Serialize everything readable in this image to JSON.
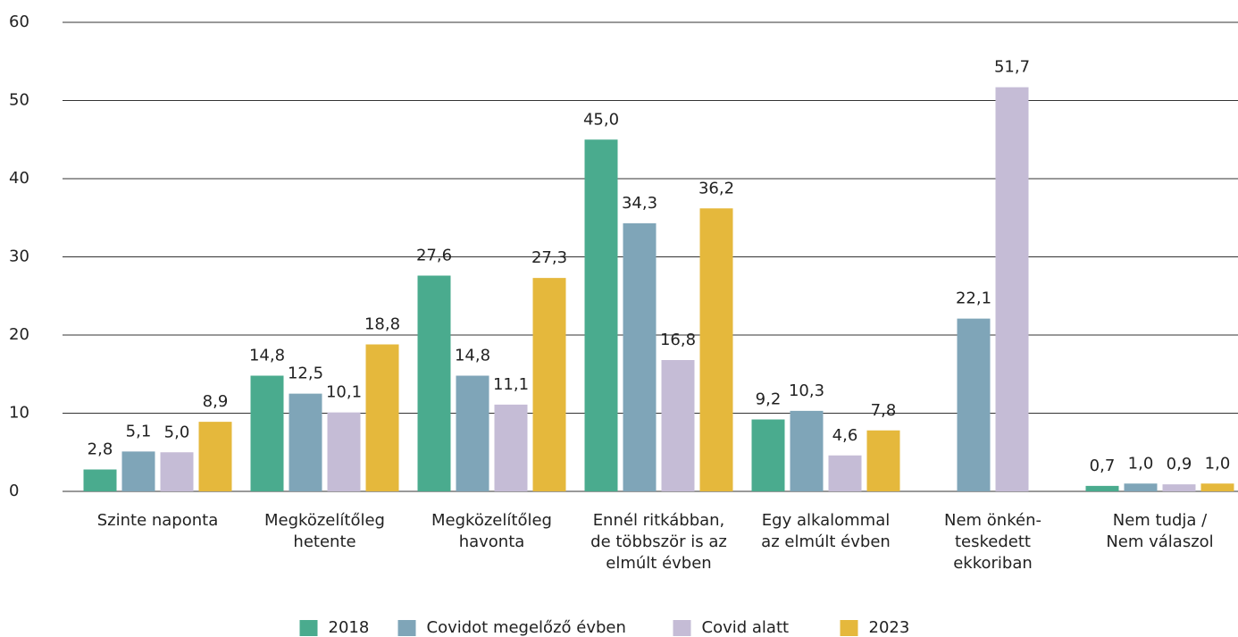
{
  "chart_data": {
    "type": "bar",
    "categories": [
      "Szinte naponta",
      "Megközelítőleg\nhetente",
      "Megközelítőleg\nhavonta",
      "Ennél ritkábban,\nde többször is az\nelmúlt évben",
      "Egy alkalommal\naz elmúlt évben",
      "Nem önkén-\nteskedett\nekkoriban",
      "Nem tudja /\nNem válaszol"
    ],
    "series": [
      {
        "name": "2018",
        "color": "#4aab8e",
        "values": [
          2.8,
          14.8,
          27.6,
          45.0,
          9.2,
          null,
          0.7
        ],
        "value_labels": [
          "2,8",
          "14,8",
          "27,6",
          "45,0",
          "9,2",
          null,
          "0,7"
        ]
      },
      {
        "name": "Covidot megelőző évben",
        "color": "#7fa5b8",
        "values": [
          5.1,
          12.5,
          14.8,
          34.3,
          10.3,
          22.1,
          1.0
        ],
        "value_labels": [
          "5,1",
          "12,5",
          "14,8",
          "34,3",
          "10,3",
          "22,1",
          "1,0"
        ]
      },
      {
        "name": "Covid alatt",
        "color": "#c5bcd6",
        "values": [
          5.0,
          10.1,
          11.1,
          16.8,
          4.6,
          51.7,
          0.9
        ],
        "value_labels": [
          "5,0",
          "10,1",
          "11,1",
          "16,8",
          "4,6",
          "51,7",
          "0,9"
        ]
      },
      {
        "name": "2023",
        "color": "#e5b83c",
        "values": [
          8.9,
          18.8,
          27.3,
          36.2,
          7.8,
          null,
          1.0
        ],
        "value_labels": [
          "8,9",
          "18,8",
          "27,3",
          "36,2",
          "7,8",
          null,
          "1,0"
        ]
      }
    ],
    "ylim": [
      0,
      60
    ],
    "yticks": [
      0,
      10,
      20,
      30,
      40,
      50,
      60
    ],
    "grid": true,
    "legend": "bottom"
  }
}
